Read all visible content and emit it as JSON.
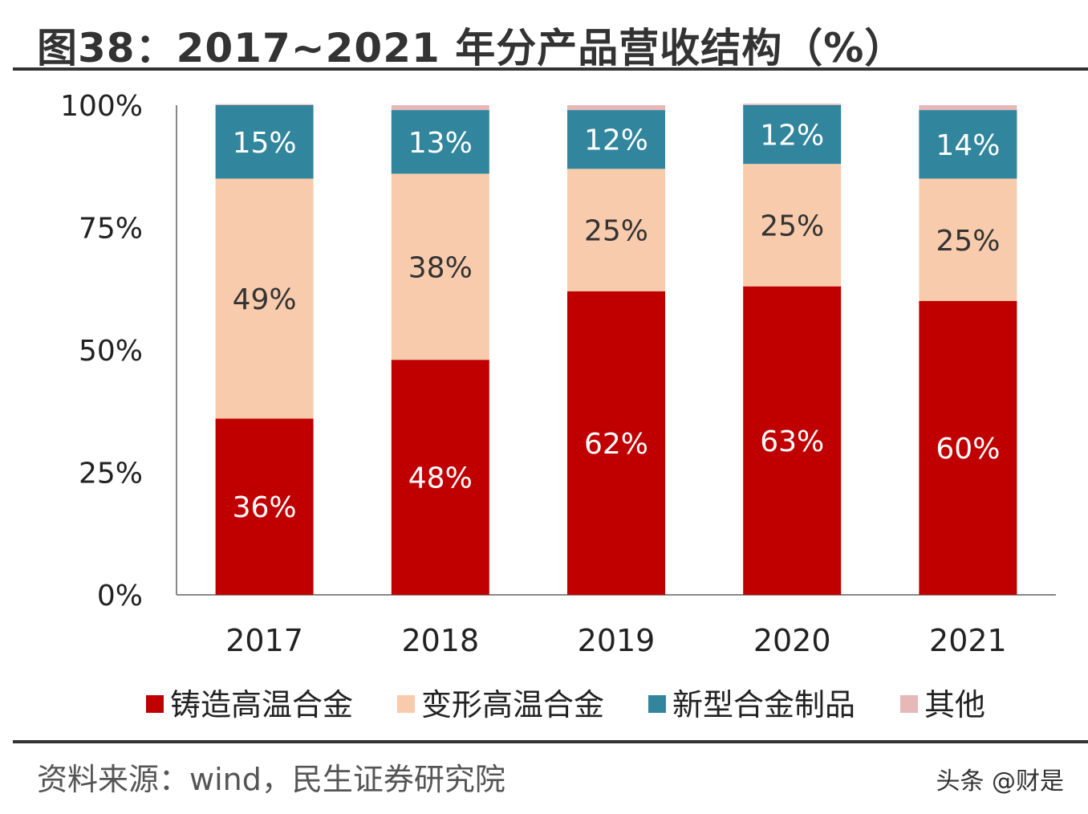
{
  "title": "图38：2017~2021 年分产品营收结构（%）",
  "source": "资料来源：wind，民生证券研究院",
  "watermark": "头条 @财是",
  "chart_data": {
    "type": "bar",
    "stacked": true,
    "percent": true,
    "categories": [
      "2017",
      "2018",
      "2019",
      "2020",
      "2021"
    ],
    "ylim": [
      0,
      100
    ],
    "yticks": [
      "0%",
      "25%",
      "50%",
      "75%",
      "100%"
    ],
    "legend_position": "bottom",
    "grid": false,
    "series": [
      {
        "name": "铸造高温合金",
        "color": "#C00000",
        "label_color": "#ffffff",
        "values": [
          36,
          48,
          62,
          63,
          60
        ],
        "labels": [
          "36%",
          "48%",
          "62%",
          "63%",
          "60%"
        ]
      },
      {
        "name": "变形高温合金",
        "color": "#F8CBAD",
        "label_color": "#333333",
        "values": [
          49,
          38,
          25,
          25,
          25
        ],
        "labels": [
          "49%",
          "38%",
          "25%",
          "25%",
          "25%"
        ]
      },
      {
        "name": "新型合金制品",
        "color": "#31859C",
        "label_color": "#ffffff",
        "values": [
          15,
          13,
          12,
          12,
          14
        ],
        "labels": [
          "15%",
          "13%",
          "12%",
          "12%",
          "14%"
        ]
      },
      {
        "name": "其他",
        "color": "#E6B8B7",
        "label_color": "#333333",
        "values": [
          0.2,
          1,
          1,
          0.3,
          1
        ],
        "labels": []
      }
    ]
  }
}
